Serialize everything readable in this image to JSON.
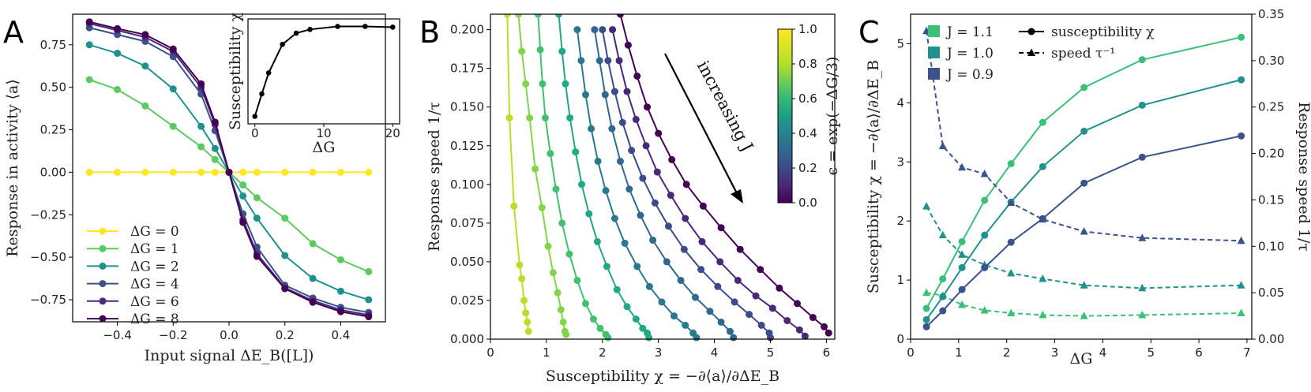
{
  "chart_data": [
    {
      "panel": "A",
      "type": "line",
      "xlabel": "Input signal ΔE_B([L])",
      "ylabel": "Response in activity ⟨a⟩",
      "xlim": [
        -0.56,
        0.56
      ],
      "ylim": [
        -0.88,
        0.93
      ],
      "xticks": [
        -0.4,
        -0.2,
        0.0,
        0.2,
        0.4
      ],
      "xtick_labels": [
        "−0.4",
        "−0.2",
        "0.0",
        "0.2",
        "0.4"
      ],
      "yticks": [
        -0.75,
        -0.5,
        -0.25,
        0.0,
        0.25,
        0.5,
        0.75
      ],
      "ytick_labels": [
        "−0.75",
        "−0.50",
        "−0.25",
        "0.00",
        "0.25",
        "0.50",
        "0.75"
      ],
      "legend_position": "lower-left",
      "x": [
        -0.5,
        -0.4,
        -0.3,
        -0.2,
        -0.1,
        -0.05,
        0.0,
        0.05,
        0.1,
        0.2,
        0.3,
        0.4,
        0.5
      ],
      "series": [
        {
          "name": "ΔG = 0",
          "color": "#fde725",
          "values": [
            0,
            0,
            0,
            0,
            0,
            0,
            0,
            0,
            0,
            0,
            0,
            0,
            0
          ]
        },
        {
          "name": "ΔG = 1",
          "color": "#5ec962",
          "values": [
            0.545,
            0.487,
            0.39,
            0.27,
            0.15,
            0.075,
            0.0,
            -0.075,
            -0.15,
            -0.27,
            -0.42,
            -0.515,
            -0.585
          ]
        },
        {
          "name": "ΔG = 2",
          "color": "#21918c",
          "values": [
            0.75,
            0.7,
            0.625,
            0.49,
            0.27,
            0.14,
            0.0,
            -0.14,
            -0.27,
            -0.49,
            -0.625,
            -0.7,
            -0.75
          ]
        },
        {
          "name": "ΔG = 4",
          "color": "#3b528b",
          "values": [
            0.85,
            0.81,
            0.77,
            0.68,
            0.46,
            0.245,
            0.0,
            -0.245,
            -0.44,
            -0.665,
            -0.74,
            -0.795,
            -0.825
          ]
        },
        {
          "name": "ΔG = 6",
          "color": "#472d7b",
          "values": [
            0.875,
            0.835,
            0.795,
            0.71,
            0.5,
            0.28,
            0.0,
            -0.28,
            -0.48,
            -0.68,
            -0.755,
            -0.81,
            -0.84
          ]
        },
        {
          "name": "ΔG = 8",
          "color": "#440154",
          "values": [
            0.885,
            0.845,
            0.81,
            0.725,
            0.52,
            0.295,
            0.0,
            -0.295,
            -0.495,
            -0.685,
            -0.765,
            -0.82,
            -0.85
          ]
        }
      ],
      "inset": {
        "type": "line",
        "xlabel": "ΔG",
        "ylabel": "Susceptibility χ",
        "xlim": [
          -1,
          21
        ],
        "ylim": [
          -0.5,
          6.5
        ],
        "xticks": [
          0,
          10,
          20
        ],
        "x": [
          0,
          1,
          2,
          4,
          6,
          8,
          12,
          16,
          20
        ],
        "values": [
          0.0,
          1.5,
          2.9,
          4.8,
          5.55,
          5.8,
          6.0,
          6.0,
          5.95
        ]
      }
    },
    {
      "panel": "B",
      "type": "line",
      "xlabel": "Susceptibility χ = −∂⟨a⟩/∂ΔE_B",
      "ylabel": "Response speed 1/τ",
      "xlim": [
        0,
        6.15
      ],
      "ylim": [
        0,
        0.21
      ],
      "xticks": [
        0,
        1,
        2,
        3,
        4,
        5,
        6
      ],
      "yticks": [
        0.0,
        0.025,
        0.05,
        0.075,
        0.1,
        0.125,
        0.15,
        0.175,
        0.2
      ],
      "ytick_labels": [
        "0.000",
        "0.025",
        "0.050",
        "0.075",
        "0.100",
        "0.125",
        "0.150",
        "0.175",
        "0.200"
      ],
      "annotation": "increasing J",
      "colorbar": {
        "label": "ϵ = exp(−ΔG/3)",
        "range": [
          0.0,
          1.0
        ],
        "ticks": [
          "0.0",
          "0.2",
          "0.4",
          "0.6",
          "0.8",
          "1.0"
        ],
        "colormap": "viridis"
      },
      "series": [
        {
          "eps": 0.89,
          "color": "#bade28",
          "points": [
            [
              0.3,
              0.21
            ],
            [
              0.34,
              0.143
            ],
            [
              0.42,
              0.086
            ],
            [
              0.52,
              0.048
            ],
            [
              0.56,
              0.039
            ],
            [
              0.6,
              0.025
            ],
            [
              0.63,
              0.017
            ],
            [
              0.66,
              0.011
            ],
            [
              0.68,
              0.005
            ]
          ]
        },
        {
          "eps": 0.8,
          "color": "#84d44b",
          "points": [
            [
              0.5,
              0.21
            ],
            [
              0.56,
              0.186
            ],
            [
              0.63,
              0.165
            ],
            [
              0.7,
              0.143
            ],
            [
              0.8,
              0.11
            ],
            [
              0.92,
              0.085
            ],
            [
              1.03,
              0.06
            ],
            [
              1.12,
              0.043
            ],
            [
              1.2,
              0.03
            ],
            [
              1.26,
              0.019
            ],
            [
              1.3,
              0.011
            ],
            [
              1.33,
              0.005
            ],
            [
              1.35,
              0.003
            ]
          ]
        },
        {
          "eps": 0.7,
          "color": "#44bf70",
          "points": [
            [
              0.85,
              0.21
            ],
            [
              0.89,
              0.187
            ],
            [
              0.93,
              0.165
            ],
            [
              0.98,
              0.143
            ],
            [
              1.07,
              0.12
            ],
            [
              1.17,
              0.097
            ],
            [
              1.28,
              0.075
            ],
            [
              1.41,
              0.055
            ],
            [
              1.55,
              0.038
            ],
            [
              1.7,
              0.023
            ],
            [
              1.84,
              0.013
            ],
            [
              1.96,
              0.007
            ],
            [
              2.06,
              0.003
            ],
            [
              2.1,
              0.001
            ]
          ]
        },
        {
          "eps": 0.58,
          "color": "#22a884",
          "points": [
            [
              1.22,
              0.21
            ],
            [
              1.28,
              0.186
            ],
            [
              1.34,
              0.165
            ],
            [
              1.42,
              0.143
            ],
            [
              1.52,
              0.121
            ],
            [
              1.63,
              0.1
            ],
            [
              1.76,
              0.081
            ],
            [
              1.91,
              0.063
            ],
            [
              2.08,
              0.047
            ],
            [
              2.26,
              0.032
            ],
            [
              2.44,
              0.021
            ],
            [
              2.6,
              0.013
            ],
            [
              2.72,
              0.007
            ],
            [
              2.8,
              0.004
            ],
            [
              2.83,
              0.001
            ]
          ]
        },
        {
          "eps": 0.47,
          "color": "#2a788e",
          "points": [
            [
              1.55,
              0.2
            ],
            [
              1.62,
              0.18
            ],
            [
              1.7,
              0.158
            ],
            [
              1.8,
              0.136
            ],
            [
              1.92,
              0.115
            ],
            [
              2.06,
              0.096
            ],
            [
              2.22,
              0.078
            ],
            [
              2.4,
              0.062
            ],
            [
              2.62,
              0.047
            ],
            [
              2.84,
              0.034
            ],
            [
              3.06,
              0.024
            ],
            [
              3.28,
              0.015
            ],
            [
              3.48,
              0.009
            ],
            [
              3.62,
              0.004
            ],
            [
              3.68,
              0.001
            ]
          ]
        },
        {
          "eps": 0.38,
          "color": "#31688e",
          "points": [
            [
              1.86,
              0.2
            ],
            [
              1.95,
              0.18
            ],
            [
              2.05,
              0.158
            ],
            [
              2.17,
              0.136
            ],
            [
              2.32,
              0.115
            ],
            [
              2.48,
              0.097
            ],
            [
              2.68,
              0.08
            ],
            [
              2.9,
              0.064
            ],
            [
              3.15,
              0.05
            ],
            [
              3.4,
              0.038
            ],
            [
              3.66,
              0.027
            ],
            [
              3.92,
              0.018
            ],
            [
              4.12,
              0.011
            ],
            [
              4.28,
              0.005
            ],
            [
              4.34,
              0.001
            ]
          ]
        },
        {
          "eps": 0.27,
          "color": "#3e4a89",
          "points": [
            [
              2.0,
              0.2
            ],
            [
              2.1,
              0.18
            ],
            [
              2.22,
              0.16
            ],
            [
              2.36,
              0.14
            ],
            [
              2.52,
              0.122
            ],
            [
              2.72,
              0.104
            ],
            [
              2.94,
              0.088
            ],
            [
              3.18,
              0.073
            ],
            [
              3.46,
              0.058
            ],
            [
              3.76,
              0.045
            ],
            [
              4.06,
              0.034
            ],
            [
              4.36,
              0.024
            ],
            [
              4.62,
              0.016
            ],
            [
              4.84,
              0.009
            ],
            [
              4.98,
              0.004
            ],
            [
              5.0,
              0.001
            ]
          ]
        },
        {
          "eps": 0.15,
          "color": "#482878",
          "points": [
            [
              2.18,
              0.2
            ],
            [
              2.3,
              0.18
            ],
            [
              2.44,
              0.16
            ],
            [
              2.6,
              0.142
            ],
            [
              2.78,
              0.125
            ],
            [
              2.98,
              0.108
            ],
            [
              3.22,
              0.093
            ],
            [
              3.48,
              0.078
            ],
            [
              3.78,
              0.063
            ],
            [
              4.1,
              0.05
            ],
            [
              4.42,
              0.038
            ],
            [
              4.74,
              0.028
            ],
            [
              5.04,
              0.02
            ],
            [
              5.3,
              0.012
            ],
            [
              5.52,
              0.006
            ],
            [
              5.62,
              0.002
            ]
          ]
        },
        {
          "eps": 0.05,
          "color": "#440154",
          "points": [
            [
              2.32,
              0.21
            ],
            [
              2.46,
              0.19
            ],
            [
              2.62,
              0.17
            ],
            [
              2.8,
              0.15
            ],
            [
              3.0,
              0.133
            ],
            [
              3.24,
              0.116
            ],
            [
              3.5,
              0.1
            ],
            [
              3.8,
              0.086
            ],
            [
              4.12,
              0.072
            ],
            [
              4.46,
              0.058
            ],
            [
              4.82,
              0.045
            ],
            [
              5.16,
              0.033
            ],
            [
              5.48,
              0.023
            ],
            [
              5.76,
              0.014
            ],
            [
              5.96,
              0.008
            ],
            [
              6.04,
              0.004
            ]
          ]
        }
      ]
    },
    {
      "panel": "C",
      "type": "line",
      "xlabel": "ΔG",
      "ylabel_left": "Susceptibility χ = −∂⟨a⟩/∂ΔE_B",
      "ylabel_right": "Response speed 1/τ",
      "xlim": [
        0,
        7.1
      ],
      "ylim_left": [
        0,
        5.5
      ],
      "ylim_right": [
        0,
        0.35
      ],
      "xticks": [
        0,
        1,
        2,
        3,
        4,
        5,
        6,
        7
      ],
      "yticks_left": [
        0,
        1,
        2,
        3,
        4,
        5
      ],
      "yticks_right": [
        0.0,
        0.05,
        0.1,
        0.15,
        0.2,
        0.25,
        0.3,
        0.35
      ],
      "ytick_labels_right": [
        "0.00",
        "0.05",
        "0.10",
        "0.15",
        "0.20",
        "0.25",
        "0.30",
        "0.35"
      ],
      "legend_position": "top-left",
      "legend": {
        "J_entries": [
          "J = 1.1",
          "J = 1.0",
          "J = 0.9"
        ],
        "style_entries": [
          "susceptibility χ",
          "speed τ⁻¹"
        ]
      },
      "x": [
        0.33,
        0.67,
        1.07,
        1.54,
        2.09,
        2.75,
        3.61,
        4.82,
        6.88
      ],
      "series": [
        {
          "name": "J = 1.1",
          "color": "#3bbf79",
          "susceptibility": [
            0.52,
            1.02,
            1.65,
            2.35,
            2.97,
            3.67,
            4.26,
            4.73,
            5.11
          ],
          "speed": [
            0.05,
            0.047,
            0.037,
            0.031,
            0.028,
            0.026,
            0.025,
            0.026,
            0.028
          ]
        },
        {
          "name": "J = 1.0",
          "color": "#21918c",
          "susceptibility": [
            0.33,
            0.72,
            1.21,
            1.76,
            2.32,
            2.92,
            3.52,
            3.96,
            4.39
          ],
          "speed": [
            0.143,
            0.112,
            0.091,
            0.08,
            0.071,
            0.065,
            0.058,
            0.055,
            0.058
          ]
        },
        {
          "name": "J = 0.9",
          "color": "#3b528b",
          "susceptibility": [
            0.21,
            0.48,
            0.84,
            1.21,
            1.64,
            2.04,
            2.64,
            3.08,
            3.44
          ],
          "speed": [
            0.332,
            0.208,
            0.185,
            0.178,
            0.147,
            0.129,
            0.116,
            0.109,
            0.106
          ]
        }
      ]
    }
  ]
}
